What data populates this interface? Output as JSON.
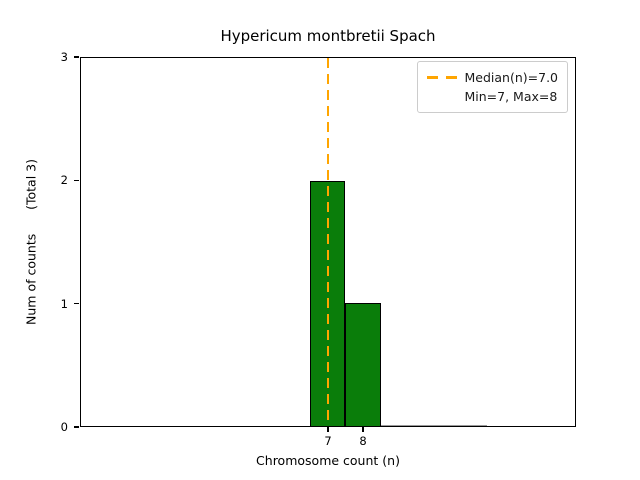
{
  "chart_data": {
    "type": "bar",
    "title": "Hypericum montbretii Spach",
    "xlabel": "Chromosome count (n)",
    "ylabel": "Num of counts      (Total 3)",
    "categories": [
      7,
      8
    ],
    "values": [
      2,
      1
    ],
    "total_counts": 3,
    "median_n": 7.0,
    "min_n": 7,
    "max_n": 8,
    "ylim": [
      0,
      3
    ],
    "yticks": [
      0,
      1,
      2,
      3
    ],
    "xticks": [
      7,
      8
    ],
    "grid": false,
    "legend": {
      "position": "upper-right",
      "entries": [
        {
          "label": "Median(n)=7.0",
          "handle": "orange-dashed-line"
        },
        {
          "label": "Min=7, Max=8",
          "handle": "none"
        }
      ]
    },
    "colors": {
      "bar_fill": "#0a7d0a",
      "bar_edge": "#000000",
      "median_line": "#FFA500",
      "figure_background": "#ffffff"
    }
  }
}
